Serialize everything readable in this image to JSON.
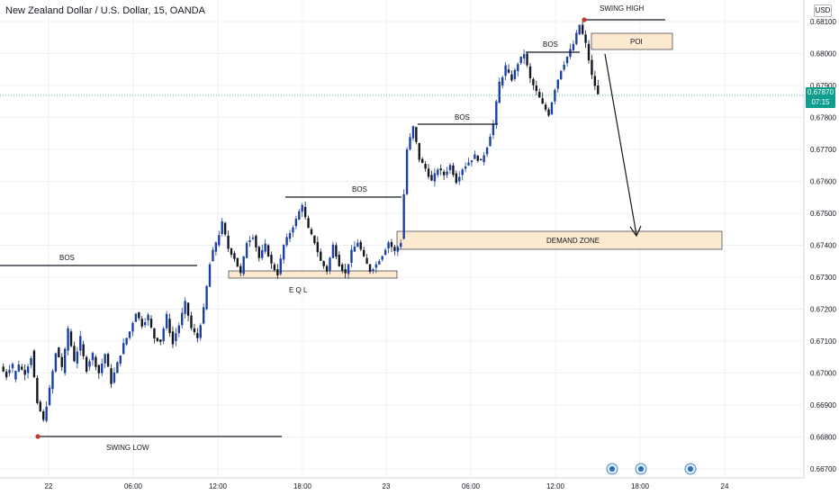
{
  "header": {
    "title": "New Zealand Dollar / U.S. Dollar, 15, OANDA",
    "currency_button": "USD"
  },
  "price_axis": {
    "ticks": [
      "0.68100",
      "0.68000",
      "0.67900",
      "0.67800",
      "0.67700",
      "0.67600",
      "0.67500",
      "0.67400",
      "0.67300",
      "0.67200",
      "0.67100",
      "0.67000",
      "0.66900",
      "0.66800",
      "0.66700"
    ]
  },
  "time_axis": {
    "ticks": [
      "22",
      "06:00",
      "12:00",
      "18:00",
      "23",
      "06:00",
      "12:00",
      "18:00",
      "24"
    ]
  },
  "current_price": {
    "value": "0.67870",
    "countdown": "07:15",
    "color": "#0f9d8d"
  },
  "annotations": {
    "bos_1": "BOS",
    "bos_2": "BOS",
    "bos_3": "BOS",
    "bos_4": "BOS",
    "eql": "E Q L",
    "swing_low": "SWING LOW",
    "swing_high": "SWING HIGH",
    "poi": "POI",
    "demand_zone": "DEMAND ZONE"
  },
  "colors": {
    "candle_up": "#1a3fa6",
    "candle_down": "#131722",
    "zone_fill": "#fde9cf",
    "swing_marker": "#c0392b",
    "grid": "#eef0f3"
  },
  "chart_data": {
    "type": "candlestick",
    "symbol": "NZDUSD",
    "interval": "15",
    "source": "OANDA",
    "ylim": [
      0.6665,
      0.6813
    ],
    "key_levels": {
      "swing_low": 0.6681,
      "swing_high": 0.6811,
      "eql": 0.673,
      "demand_zone": [
        0.6739,
        0.6745
      ],
      "poi": [
        0.6801,
        0.6806
      ],
      "bos_levels": [
        0.6734,
        0.6755,
        0.6778,
        0.68
      ]
    },
    "close_path": [
      [
        0.6702,
        0.6699
      ],
      [
        0.67,
        0.6703
      ],
      [
        0.6698,
        0.6703
      ],
      [
        0.6702,
        0.67
      ],
      [
        0.67,
        0.6705
      ],
      [
        0.6707,
        0.669
      ],
      [
        0.6691,
        0.6685
      ],
      [
        0.6685,
        0.6695
      ],
      [
        0.6695,
        0.6706
      ],
      [
        0.6708,
        0.6702
      ],
      [
        0.67,
        0.6714
      ],
      [
        0.6713,
        0.6704
      ],
      [
        0.6703,
        0.6711
      ],
      [
        0.6709,
        0.6701
      ],
      [
        0.6702,
        0.6706
      ],
      [
        0.6705,
        0.67
      ],
      [
        0.67,
        0.6706
      ],
      [
        0.6706,
        0.6697
      ],
      [
        0.6697,
        0.6703
      ],
      [
        0.6703,
        0.6709
      ],
      [
        0.6709,
        0.6713
      ],
      [
        0.6713,
        0.6719
      ],
      [
        0.6719,
        0.6715
      ],
      [
        0.6715,
        0.6718
      ],
      [
        0.6717,
        0.6711
      ],
      [
        0.6711,
        0.671
      ],
      [
        0.671,
        0.6718
      ],
      [
        0.6717,
        0.6709
      ],
      [
        0.671,
        0.6715
      ],
      [
        0.6715,
        0.6722
      ],
      [
        0.6722,
        0.6714
      ],
      [
        0.6714,
        0.6711
      ],
      [
        0.6711,
        0.672
      ],
      [
        0.672,
        0.6734
      ],
      [
        0.6735,
        0.6741
      ],
      [
        0.674,
        0.6747
      ],
      [
        0.6747,
        0.6739
      ],
      [
        0.6739,
        0.6736
      ],
      [
        0.6736,
        0.6731
      ],
      [
        0.6731,
        0.6741
      ],
      [
        0.6741,
        0.6743
      ],
      [
        0.6743,
        0.6736
      ],
      [
        0.6736,
        0.674
      ],
      [
        0.674,
        0.6734
      ],
      [
        0.6734,
        0.6731
      ],
      [
        0.6731,
        0.674
      ],
      [
        0.674,
        0.6744
      ],
      [
        0.6744,
        0.6748
      ],
      [
        0.6748,
        0.6753
      ],
      [
        0.6752,
        0.6745
      ],
      [
        0.6745,
        0.6741
      ],
      [
        0.6741,
        0.6735
      ],
      [
        0.6735,
        0.6732
      ],
      [
        0.6732,
        0.674
      ],
      [
        0.674,
        0.6734
      ],
      [
        0.6734,
        0.6731
      ],
      [
        0.6731,
        0.6738
      ],
      [
        0.6738,
        0.6741
      ],
      [
        0.6741,
        0.6736
      ],
      [
        0.6736,
        0.6732
      ],
      [
        0.6732,
        0.6734
      ],
      [
        0.6734,
        0.6737
      ],
      [
        0.6737,
        0.6741
      ],
      [
        0.6741,
        0.6738
      ],
      [
        0.6738,
        0.6741
      ],
      [
        0.6742,
        0.677
      ],
      [
        0.677,
        0.6777
      ],
      [
        0.6777,
        0.6767
      ],
      [
        0.6767,
        0.6764
      ],
      [
        0.6764,
        0.676
      ],
      [
        0.676,
        0.6764
      ],
      [
        0.6764,
        0.6762
      ],
      [
        0.6762,
        0.6765
      ],
      [
        0.6765,
        0.676
      ],
      [
        0.676,
        0.6764
      ],
      [
        0.6764,
        0.6766
      ],
      [
        0.6766,
        0.6768
      ],
      [
        0.6768,
        0.6766
      ],
      [
        0.6766,
        0.6771
      ],
      [
        0.6771,
        0.6778
      ],
      [
        0.6778,
        0.6791
      ],
      [
        0.679,
        0.6796
      ],
      [
        0.6795,
        0.6792
      ],
      [
        0.6792,
        0.6797
      ],
      [
        0.6797,
        0.68
      ],
      [
        0.68,
        0.6792
      ],
      [
        0.6792,
        0.6788
      ],
      [
        0.6788,
        0.6784
      ],
      [
        0.6784,
        0.6781
      ],
      [
        0.6781,
        0.6789
      ],
      [
        0.6789,
        0.6795
      ],
      [
        0.6795,
        0.6799
      ],
      [
        0.6799,
        0.6803
      ],
      [
        0.6803,
        0.6809
      ],
      [
        0.6809,
        0.6803
      ],
      [
        0.6803,
        0.6793
      ],
      [
        0.6793,
        0.6787
      ]
    ]
  }
}
